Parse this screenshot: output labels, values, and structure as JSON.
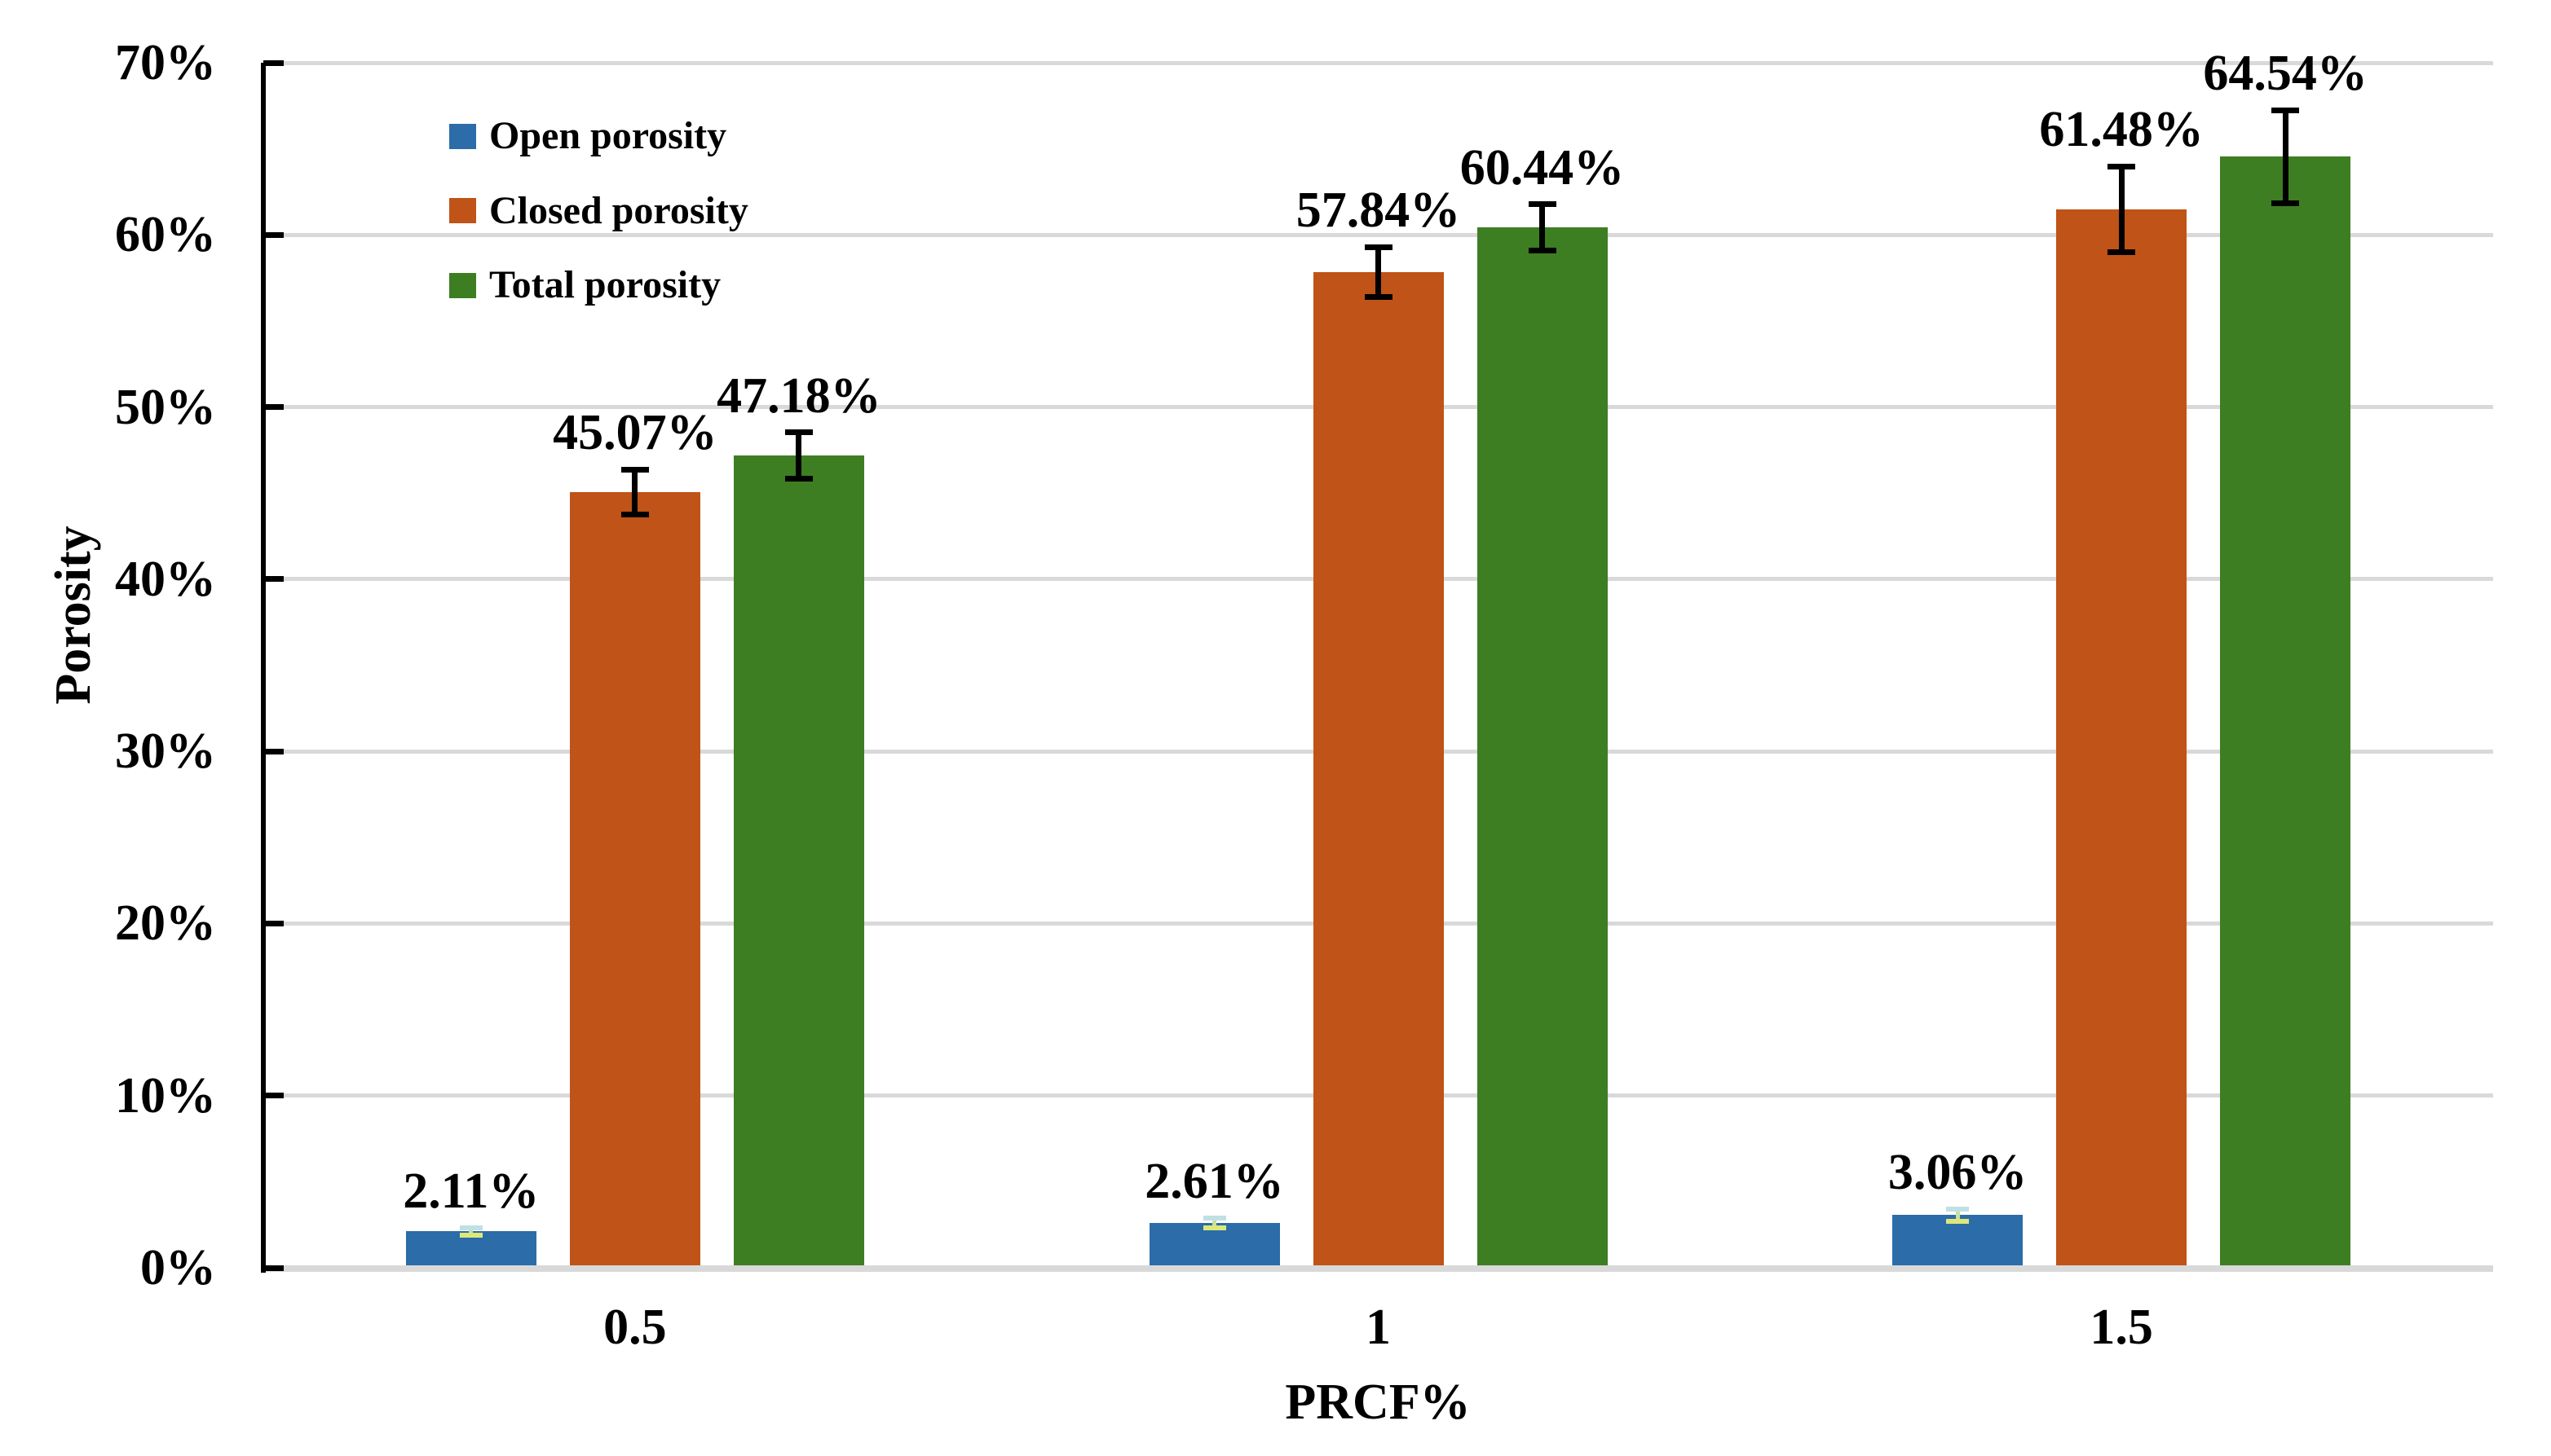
{
  "chart_data": {
    "type": "bar",
    "title": "",
    "xlabel": "PRCF%",
    "ylabel": "Porosity",
    "categories": [
      "0.5",
      "1",
      "1.5"
    ],
    "series": [
      {
        "name": "Open porosity",
        "color": "#2B6CA9",
        "values": [
          2.11,
          2.61,
          3.06
        ],
        "value_labels": [
          "2.11%",
          "2.61%",
          "3.06%"
        ],
        "errors": [
          0.2,
          0.3,
          0.35
        ]
      },
      {
        "name": "Closed porosity",
        "color": "#C05317",
        "values": [
          45.07,
          57.84,
          61.48
        ],
        "value_labels": [
          "45.07%",
          "57.84%",
          "61.48%"
        ],
        "errors": [
          1.3,
          1.45,
          2.5
        ]
      },
      {
        "name": "Total porosity",
        "color": "#3E7E22",
        "values": [
          47.18,
          60.44,
          64.54
        ],
        "value_labels": [
          "47.18%",
          "60.44%",
          "64.54%"
        ],
        "errors": [
          1.35,
          1.35,
          2.7
        ]
      }
    ],
    "y_axis": {
      "ticks": [
        "0%",
        "10%",
        "20%",
        "30%",
        "40%",
        "50%",
        "60%",
        "70%"
      ],
      "min": 0,
      "max": 70,
      "step": 10
    },
    "grid": true,
    "legend_position": "inside-top-left"
  },
  "colors": {
    "background": "#FFFFFF",
    "gridline": "#D9D9D9",
    "baseline": "#D9D9D9",
    "axis": "#000000",
    "text": "#000000",
    "error_bar": "#000000",
    "error_bar_open_top_cap": "#BFE0E4",
    "error_bar_open_bottom_cap": "#DDE879",
    "error_bar_open_stem": "#CBDF9E"
  }
}
